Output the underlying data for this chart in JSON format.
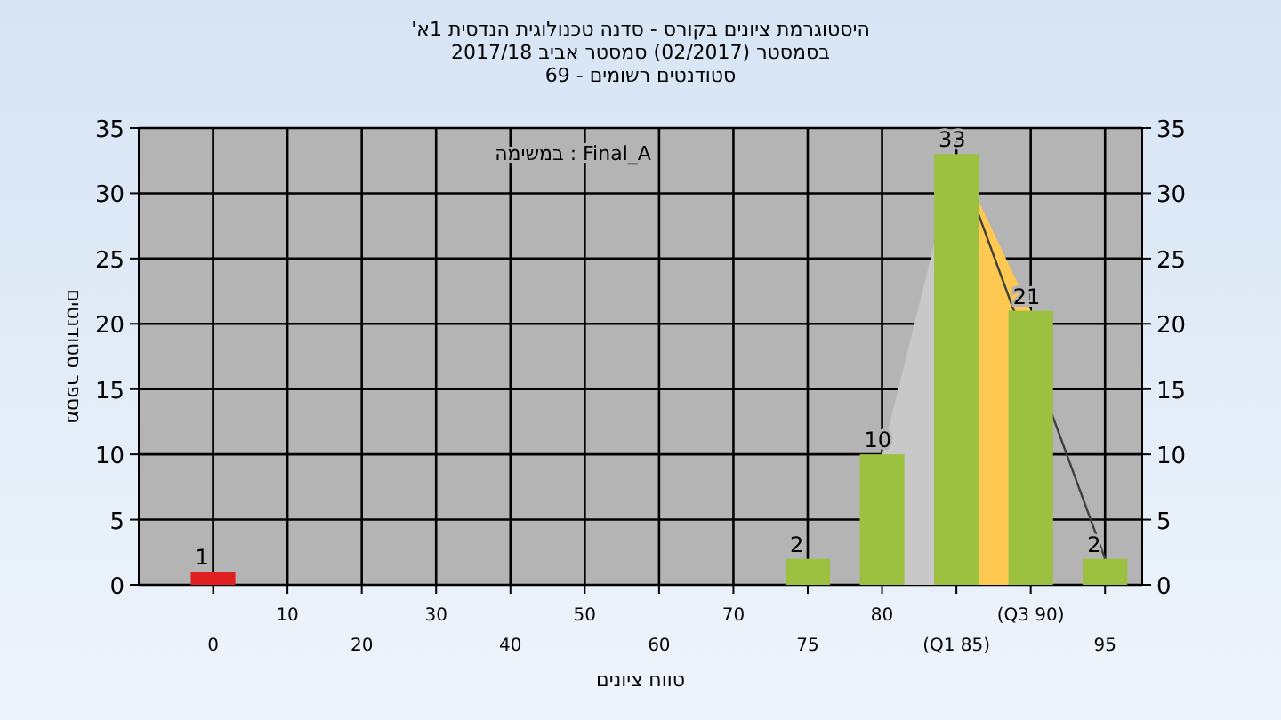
{
  "chart_data": {
    "type": "bar",
    "title": "היסטוגרמת ציונים בקורס - סדנה טכנולוגית הנדסית 1א'",
    "subtitle": "בסמסטר  (02/2017)  סמסטר אביב 2017/18\nסטודנטים רשומים - 69",
    "xlabel": "טווח ציונים",
    "ylabel": "מספר סטודנטים",
    "annotations": [
      "במשימה : Final_A"
    ],
    "categories": [
      "0",
      "10",
      "20",
      "30",
      "40",
      "50",
      "60",
      "70",
      "75",
      "80",
      "(Q1 85)",
      "(Q3 90)",
      "95"
    ],
    "series": [
      {
        "type": "area",
        "color": "#c8c8c8",
        "values": [
          null,
          null,
          null,
          null,
          null,
          null,
          null,
          null,
          null,
          10,
          33,
          null,
          null
        ]
      },
      {
        "type": "area",
        "color": "#ffc850",
        "values": [
          null,
          null,
          null,
          null,
          null,
          null,
          null,
          null,
          null,
          null,
          33,
          21,
          null
        ]
      },
      {
        "type": "line",
        "color": "#404040",
        "x": [
          "(Q1 85)",
          "95"
        ],
        "values": [
          33,
          2
        ]
      },
      {
        "colors": [
          "#e02020",
          "#9cc040",
          "#9cc040",
          "#9cc040",
          "#9cc040",
          "#9cc040",
          "#9cc040",
          "#9cc040",
          "#9cc040",
          "#9cc040",
          "#9cc040",
          "#9cc040",
          "#9cc040"
        ],
        "values": [
          1,
          0,
          0,
          0,
          0,
          0,
          0,
          0,
          2,
          10,
          33,
          21,
          2
        ],
        "value_labels": [
          "1",
          null,
          null,
          null,
          null,
          null,
          null,
          null,
          "2",
          "10",
          "33",
          "21",
          "2"
        ]
      }
    ],
    "ylim": [
      0,
      35
    ],
    "yticks": [
      0,
      5,
      10,
      15,
      20,
      25,
      30,
      35
    ],
    "y2lim": [
      0,
      35
    ],
    "y2ticks": [
      0,
      5,
      10,
      15,
      20,
      25,
      30,
      35
    ],
    "grid": true
  }
}
